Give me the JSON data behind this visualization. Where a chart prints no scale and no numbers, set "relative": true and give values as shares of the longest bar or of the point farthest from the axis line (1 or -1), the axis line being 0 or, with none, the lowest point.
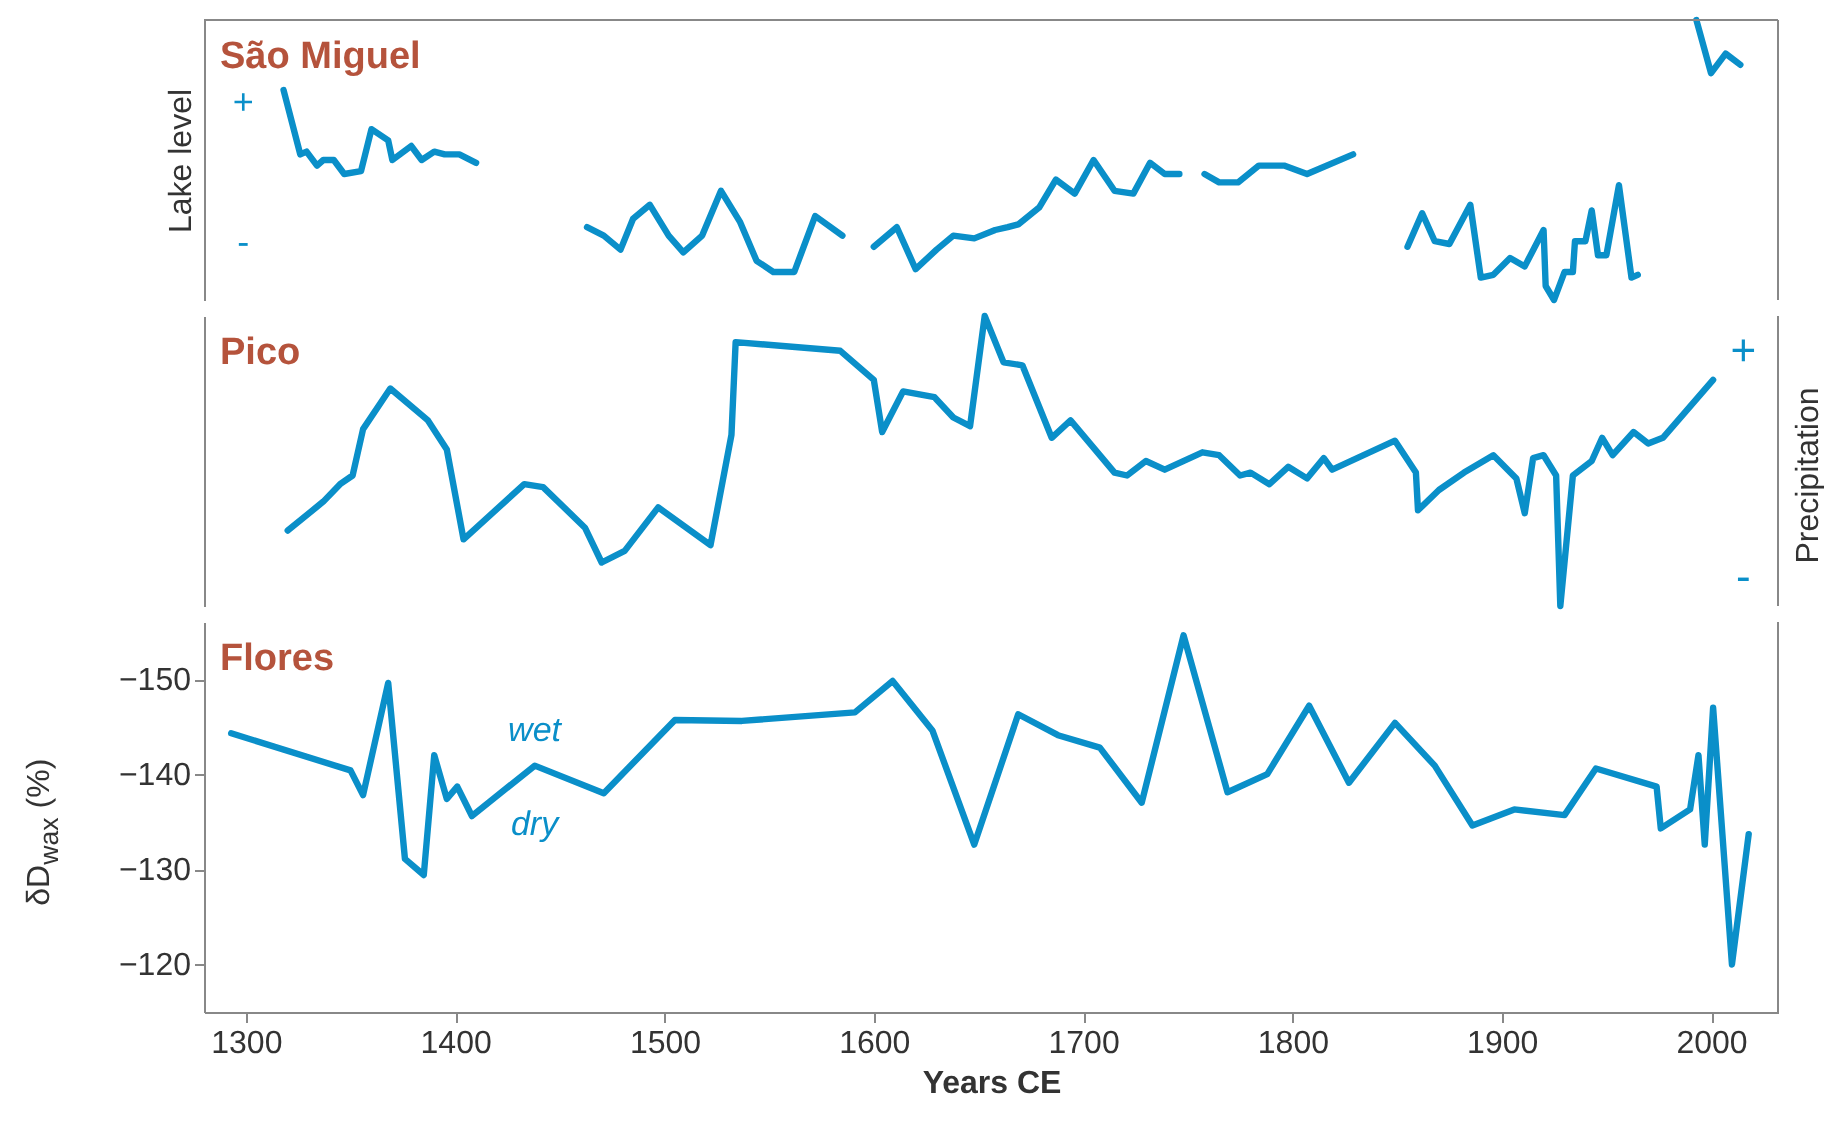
{
  "chart_data": [
    {
      "type": "line",
      "title": "São Miguel",
      "ylabel": "Lake level",
      "annotations": [
        "+",
        "-"
      ],
      "relative": true,
      "tick_labels": false,
      "xlim": [
        1280,
        2032
      ],
      "series": [
        {
          "color": "#0a8fc9",
          "x": [
            1318,
            1326,
            1329,
            1334,
            1337,
            1342,
            1347,
            1355,
            1360,
            1368,
            1370,
            1379,
            1384,
            1390,
            1395,
            1402,
            1410
          ],
          "values": [
            0.75,
            0.52,
            0.53,
            0.48,
            0.5,
            0.5,
            0.45,
            0.46,
            0.61,
            0.57,
            0.5,
            0.55,
            0.5,
            0.53,
            0.52,
            0.52,
            0.49
          ]
        },
        {
          "color": "#0a8fc9",
          "x": [
            1463,
            1471,
            1479,
            1485,
            1493,
            1502,
            1509,
            1518,
            1527,
            1536,
            1544,
            1552,
            1562,
            1572,
            1585
          ],
          "values": [
            0.26,
            0.23,
            0.18,
            0.29,
            0.34,
            0.23,
            0.17,
            0.23,
            0.39,
            0.28,
            0.14,
            0.1,
            0.1,
            0.3,
            0.23
          ]
        },
        {
          "color": "#0a8fc9",
          "x": [
            1600,
            1611,
            1620,
            1630,
            1638,
            1648,
            1658,
            1664,
            1669,
            1679,
            1687,
            1696,
            1705,
            1715,
            1724,
            1732,
            1739,
            1746
          ],
          "values": [
            0.19,
            0.26,
            0.11,
            0.18,
            0.23,
            0.22,
            0.25,
            0.26,
            0.27,
            0.33,
            0.43,
            0.38,
            0.5,
            0.39,
            0.38,
            0.49,
            0.45,
            0.45
          ]
        },
        {
          "color": "#0a8fc9",
          "x": [
            1758,
            1765,
            1774,
            1784,
            1796,
            1807,
            1829
          ],
          "values": [
            0.45,
            0.42,
            0.42,
            0.48,
            0.48,
            0.45,
            0.52
          ]
        },
        {
          "color": "#0a8fc9",
          "x": [
            1855,
            1862,
            1868,
            1875,
            1885,
            1890,
            1896,
            1904,
            1911,
            1920,
            1921,
            1925,
            1930,
            1934,
            1935,
            1940,
            1943,
            1946,
            1950,
            1956,
            1962,
            1965
          ],
          "values": [
            0.19,
            0.31,
            0.21,
            0.2,
            0.34,
            0.08,
            0.09,
            0.15,
            0.12,
            0.25,
            0.05,
            0,
            0.1,
            0.1,
            0.21,
            0.21,
            0.32,
            0.16,
            0.16,
            0.41,
            0.08,
            0.09
          ]
        },
        {
          "color": "#0a8fc9",
          "x": [
            1993,
            2000,
            2007,
            2014
          ],
          "values": [
            1,
            0.81,
            0.88,
            0.84
          ]
        }
      ]
    },
    {
      "type": "line",
      "title": "Pico",
      "y2label": "Precipitation",
      "annotations": [
        "+",
        "-"
      ],
      "relative": true,
      "tick_labels": false,
      "xlim": [
        1280,
        2032
      ],
      "x": [
        1320,
        1337,
        1345,
        1351,
        1356,
        1369,
        1387,
        1396,
        1404,
        1433,
        1442,
        1462,
        1470,
        1481,
        1497,
        1522,
        1532,
        1534,
        1584,
        1600,
        1604,
        1614,
        1629,
        1638,
        1646,
        1653,
        1662,
        1671,
        1685,
        1694,
        1715,
        1721,
        1730,
        1739,
        1757,
        1765,
        1775,
        1780,
        1789,
        1798,
        1807,
        1815,
        1819,
        1849,
        1859,
        1860,
        1870,
        1882,
        1896,
        1907,
        1911,
        1915,
        1920,
        1926,
        1928,
        1934,
        1943,
        1948,
        1953,
        1963,
        1970,
        1977,
        2001
      ],
      "series": [
        {
          "color": "#0a8fc9",
          "values": [
            0.26,
            0.36,
            0.42,
            0.45,
            0.61,
            0.75,
            0.64,
            0.54,
            0.23,
            0.42,
            0.41,
            0.27,
            0.15,
            0.19,
            0.34,
            0.21,
            0.59,
            0.91,
            0.88,
            0.78,
            0.6,
            0.74,
            0.72,
            0.65,
            0.62,
            1,
            0.84,
            0.83,
            0.58,
            0.64,
            0.46,
            0.45,
            0.5,
            0.47,
            0.53,
            0.52,
            0.45,
            0.46,
            0.42,
            0.48,
            0.44,
            0.51,
            0.47,
            0.57,
            0.46,
            0.33,
            0.4,
            0.46,
            0.52,
            0.44,
            0.32,
            0.51,
            0.52,
            0.45,
            0,
            0.45,
            0.5,
            0.58,
            0.52,
            0.6,
            0.56,
            0.58,
            0.78
          ]
        }
      ]
    },
    {
      "type": "line",
      "title": "Flores",
      "ylabel": "δD$_{wax}$ (%)",
      "xlabel": "Years CE",
      "annotations": [
        "wet",
        "dry"
      ],
      "xlim": [
        1280,
        2032
      ],
      "xticks": [
        1300,
        1400,
        1500,
        1600,
        1700,
        1800,
        1900,
        2000
      ],
      "ylim": [
        -115,
        -156
      ],
      "yticks": [
        -150,
        -140,
        -130,
        -120
      ],
      "x": [
        1293,
        1350,
        1356,
        1368,
        1376,
        1385,
        1390,
        1396,
        1401,
        1408,
        1438,
        1471,
        1505,
        1537,
        1591,
        1609,
        1628,
        1648,
        1669,
        1688,
        1708,
        1728,
        1748,
        1769,
        1788,
        1808,
        1827,
        1849,
        1868,
        1886,
        1906,
        1930,
        1945,
        1974,
        1976,
        1990,
        1994,
        1997,
        2001,
        2010,
        2018
      ],
      "series": [
        {
          "color": "#0a8fc9",
          "values": [
            -144.3,
            -140.4,
            -137.8,
            -149.6,
            -131.1,
            -129.4,
            -142,
            -137.4,
            -138.7,
            -135.6,
            -140.9,
            -138,
            -145.7,
            -145.6,
            -146.5,
            -149.8,
            -144.6,
            -132.6,
            -146.3,
            -144.1,
            -142.8,
            -137,
            -154.6,
            -138.1,
            -140,
            -147.2,
            -139.1,
            -145.4,
            -140.9,
            -134.6,
            -136.3,
            -135.7,
            -140.6,
            -138.7,
            -134.3,
            -136.3,
            -142,
            -132.6,
            -147,
            -120,
            -133.7
          ]
        }
      ]
    }
  ]
}
